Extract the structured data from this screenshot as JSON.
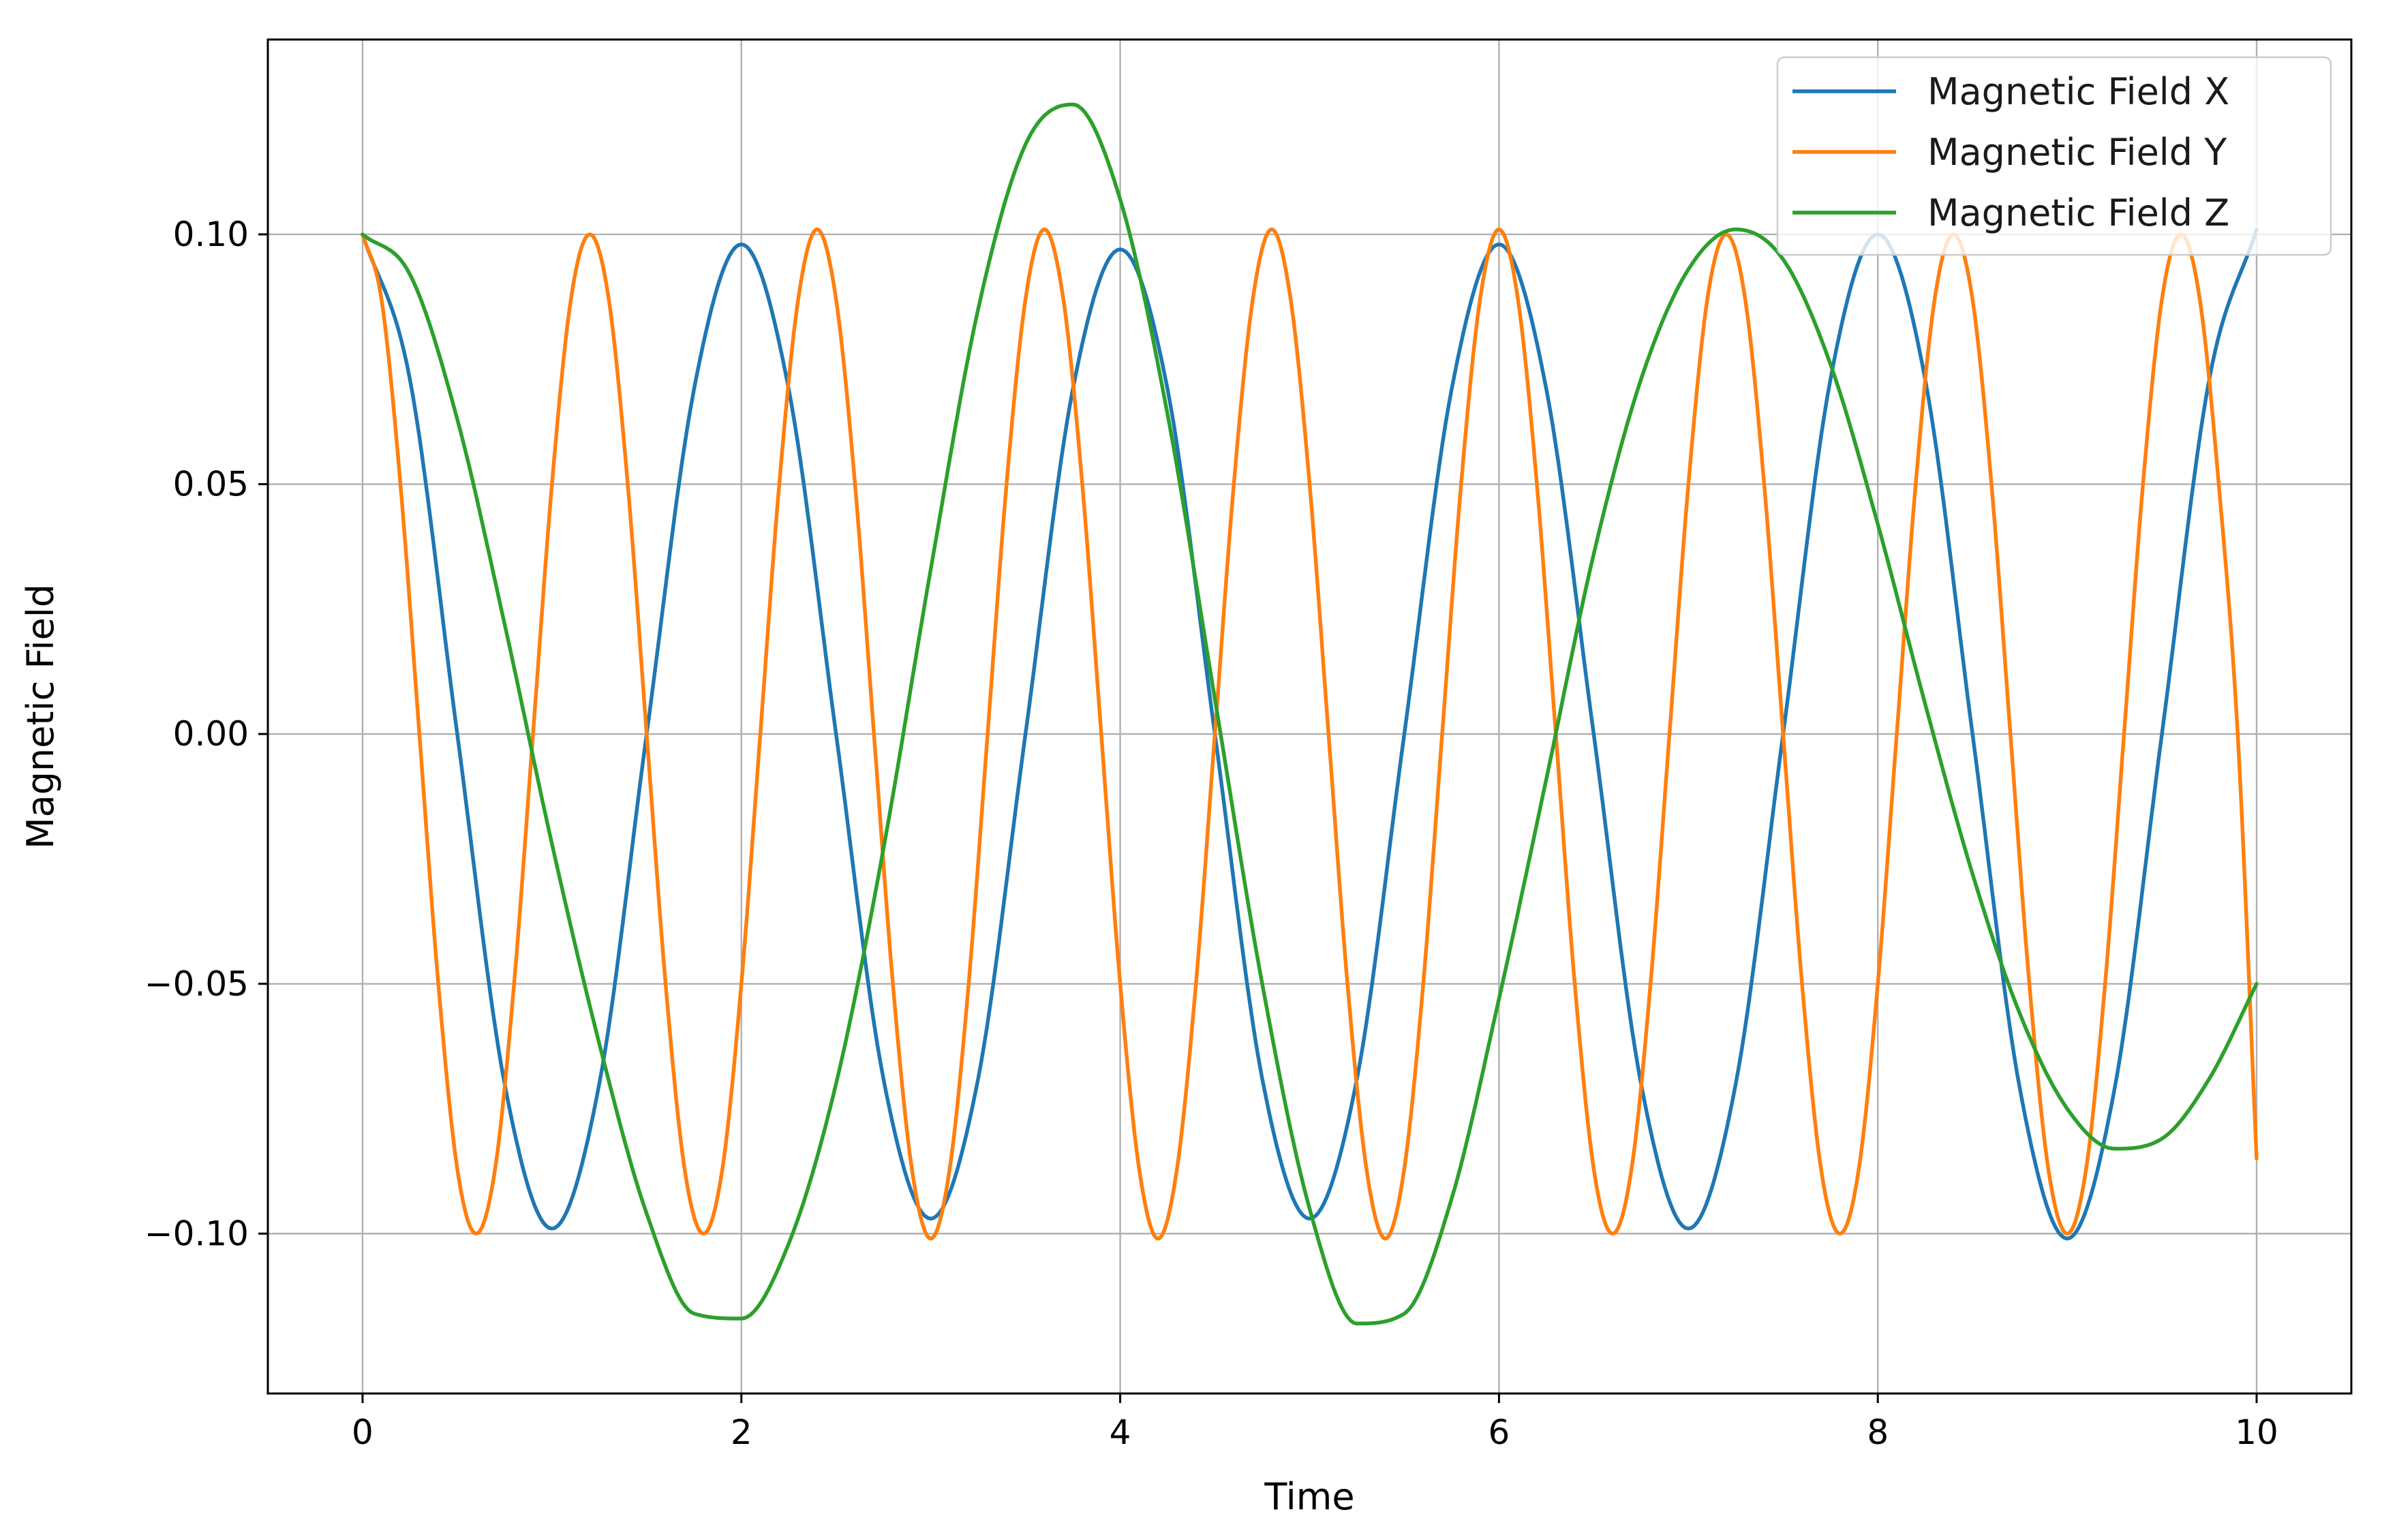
{
  "chart_data": {
    "type": "line",
    "xlabel": "Time",
    "ylabel": "Magnetic Field",
    "xlim": [
      -0.5,
      10.5
    ],
    "ylim": [
      -0.132,
      0.139
    ],
    "xticks": [
      0,
      2,
      4,
      6,
      8,
      10
    ],
    "xtick_labels": [
      "0",
      "2",
      "4",
      "6",
      "8",
      "10"
    ],
    "yticks": [
      0.1,
      0.05,
      0.0,
      -0.05,
      -0.1
    ],
    "ytick_labels": [
      "0.10",
      "0.05",
      "0.00",
      "−0.05",
      "−0.10"
    ],
    "grid": true,
    "legend_position": "top-right",
    "series": [
      {
        "name": "Magnetic Field X",
        "color": "#1f77b4",
        "x": [
          0,
          0.25,
          0.5,
          0.75,
          1.0,
          1.25,
          1.5,
          1.75,
          2.0,
          2.25,
          2.5,
          2.75,
          3.0,
          3.25,
          3.5,
          3.75,
          4.0,
          4.25,
          4.5,
          4.75,
          5.0,
          5.25,
          5.5,
          5.75,
          6.0,
          6.25,
          6.5,
          6.75,
          7.0,
          7.25,
          7.5,
          7.75,
          8.0,
          8.25,
          8.5,
          8.75,
          9.0,
          9.25,
          9.5,
          9.75,
          10.0
        ],
        "values": [
          0.1,
          0.071,
          0.0,
          -0.07,
          -0.099,
          -0.07,
          0.0,
          0.069,
          0.098,
          0.069,
          0.0,
          -0.069,
          -0.097,
          -0.069,
          0.0,
          0.069,
          0.097,
          0.069,
          0.0,
          -0.069,
          -0.097,
          -0.069,
          0.0,
          0.069,
          0.098,
          0.069,
          0.0,
          -0.07,
          -0.099,
          -0.07,
          0.0,
          0.071,
          0.1,
          0.071,
          0.0,
          -0.071,
          -0.101,
          -0.071,
          0.0,
          0.071,
          0.101
        ]
      },
      {
        "name": "Magnetic Field Y",
        "color": "#ff7f0e",
        "x": [
          0,
          0.1,
          0.2,
          0.3,
          0.4,
          0.5,
          0.6,
          0.7,
          0.8,
          0.9,
          1.0,
          1.1,
          1.2,
          1.3,
          1.4,
          1.5,
          1.6,
          1.7,
          1.8,
          1.9,
          2.0,
          2.1,
          2.2,
          2.3,
          2.4,
          2.5,
          2.6,
          2.7,
          2.8,
          2.9,
          3.0,
          3.1,
          3.2,
          3.3,
          3.4,
          3.5,
          3.6,
          3.7,
          3.8,
          3.9,
          4.0,
          4.1,
          4.2,
          4.3,
          4.4,
          4.5,
          4.6,
          4.7,
          4.8,
          4.9,
          5.0,
          5.1,
          5.2,
          5.3,
          5.4,
          5.5,
          5.6,
          5.7,
          5.8,
          5.9,
          6.0,
          6.1,
          6.2,
          6.3,
          6.4,
          6.5,
          6.6,
          6.7,
          6.8,
          6.9,
          7.0,
          7.1,
          7.2,
          7.3,
          7.4,
          7.5,
          7.6,
          7.7,
          7.8,
          7.9,
          8.0,
          8.1,
          8.2,
          8.3,
          8.4,
          8.5,
          8.6,
          8.7,
          8.8,
          8.9,
          9.0,
          9.1,
          9.2,
          9.3,
          9.4,
          9.5,
          9.6,
          9.7,
          9.8,
          9.9,
          10.0
        ],
        "values": [
          0.1,
          0.087,
          0.05,
          0.0,
          -0.05,
          -0.087,
          -0.1,
          -0.087,
          -0.05,
          0.0,
          0.05,
          0.087,
          0.1,
          0.087,
          0.05,
          0.0,
          -0.05,
          -0.087,
          -0.1,
          -0.087,
          -0.05,
          0.0,
          0.05,
          0.087,
          0.101,
          0.087,
          0.05,
          0.0,
          -0.05,
          -0.087,
          -0.101,
          -0.087,
          -0.05,
          0.0,
          0.05,
          0.087,
          0.101,
          0.087,
          0.05,
          0.0,
          -0.05,
          -0.087,
          -0.101,
          -0.087,
          -0.05,
          0.0,
          0.05,
          0.087,
          0.101,
          0.087,
          0.05,
          0.0,
          -0.05,
          -0.087,
          -0.101,
          -0.087,
          -0.05,
          0.0,
          0.05,
          0.087,
          0.101,
          0.087,
          0.05,
          0.0,
          -0.05,
          -0.087,
          -0.1,
          -0.087,
          -0.05,
          0.0,
          0.05,
          0.087,
          0.1,
          0.087,
          0.05,
          0.0,
          -0.05,
          -0.087,
          -0.1,
          -0.087,
          -0.05,
          0.0,
          0.05,
          0.087,
          0.1,
          0.087,
          0.05,
          0.0,
          -0.05,
          -0.087,
          -0.1,
          -0.087,
          -0.05,
          0.0,
          0.05,
          0.087,
          0.1,
          0.087,
          0.05,
          0.0,
          -0.085
        ]
      },
      {
        "name": "Magnetic Field Z",
        "color": "#2ca02c",
        "x": [
          0,
          0.25,
          0.5,
          0.75,
          1.0,
          1.25,
          1.5,
          1.75,
          2.0,
          2.25,
          2.5,
          2.75,
          3.0,
          3.25,
          3.5,
          3.75,
          4.0,
          4.25,
          4.5,
          4.75,
          5.0,
          5.25,
          5.5,
          5.75,
          6.0,
          6.25,
          6.5,
          6.75,
          7.0,
          7.25,
          7.5,
          7.75,
          8.0,
          8.25,
          8.5,
          8.75,
          9.0,
          9.25,
          9.5,
          9.75,
          10.0
        ],
        "values": [
          0.1,
          0.092,
          0.063,
          0.022,
          -0.022,
          -0.062,
          -0.096,
          -0.116,
          -0.117,
          -0.102,
          -0.07,
          -0.023,
          0.033,
          0.085,
          0.118,
          0.126,
          0.107,
          0.064,
          0.007,
          -0.05,
          -0.095,
          -0.118,
          -0.116,
          -0.093,
          -0.053,
          -0.009,
          0.036,
          0.071,
          0.093,
          0.101,
          0.095,
          0.074,
          0.042,
          0.006,
          -0.028,
          -0.056,
          -0.075,
          -0.083,
          -0.081,
          -0.069,
          -0.05
        ]
      }
    ]
  }
}
